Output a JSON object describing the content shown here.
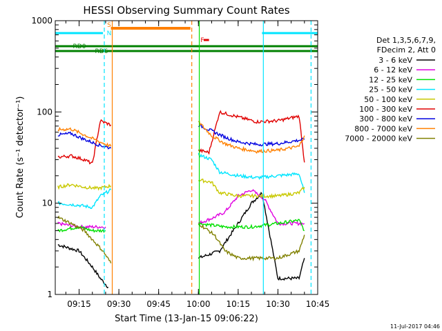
{
  "chart_data": {
    "type": "line",
    "title": "HESSI Observing Summary Count Rates",
    "xlabel": "Start Time (13-Jan-15 09:06:22)",
    "ylabel": "Count Rate (s⁻¹ detector⁻¹)",
    "y_scale": "log",
    "ylim": [
      1,
      1000
    ],
    "xlim": [
      "09:06",
      "10:45"
    ],
    "x_ticks": [
      "09:15",
      "09:30",
      "09:45",
      "10:00",
      "10:15",
      "10:30",
      "10:45"
    ],
    "y_ticks": [
      "1",
      "10",
      "100",
      "1000"
    ],
    "legend_title": [
      "Det 1,3,5,6,7,9,",
      "FDecim 2, Att 0"
    ],
    "legend_position": "right",
    "series": [
      {
        "name": "3 - 6 keV",
        "color": "#000000",
        "x": [
          "09:07",
          "09:15",
          "09:20",
          "09:23",
          "09:26",
          "10:00",
          "10:08",
          "10:15",
          "10:20",
          "10:24",
          "10:30",
          "10:38",
          "10:40"
        ],
        "values": [
          3.5,
          3.0,
          2.0,
          1.5,
          1.2,
          2.5,
          3.0,
          6.0,
          10.0,
          13.0,
          1.5,
          1.5,
          2.5
        ]
      },
      {
        "name": "6 - 12 keV",
        "color": "#e000e0",
        "x": [
          "09:07",
          "09:15",
          "09:20",
          "09:25",
          "10:00",
          "10:06",
          "10:10",
          "10:15",
          "10:20",
          "10:25",
          "10:30",
          "10:38",
          "10:40"
        ],
        "values": [
          6.0,
          5.5,
          5.5,
          5.5,
          6.0,
          7.0,
          8.0,
          12.0,
          14.0,
          11.0,
          6.0,
          6.0,
          6.0
        ]
      },
      {
        "name": "12 - 25 keV",
        "color": "#00e000",
        "x": [
          "09:07",
          "09:15",
          "09:20",
          "09:25",
          "10:00",
          "10:10",
          "10:20",
          "10:30",
          "10:38",
          "10:40"
        ],
        "values": [
          5.0,
          5.5,
          5.0,
          5.0,
          6.0,
          5.5,
          5.5,
          6.0,
          6.5,
          5.0
        ]
      },
      {
        "name": "25 - 50 keV",
        "color": "#00e5ff",
        "x": [
          "09:07",
          "09:15",
          "09:20",
          "09:23",
          "09:27",
          "10:00",
          "10:05",
          "10:08",
          "10:15",
          "10:22",
          "10:30",
          "10:38",
          "10:40"
        ],
        "values": [
          10.0,
          9.5,
          9.0,
          12.0,
          14.0,
          34.0,
          30.0,
          22.0,
          20.0,
          19.0,
          20.0,
          21.0,
          13.0
        ]
      },
      {
        "name": "50 - 100 keV",
        "color": "#c8c800",
        "x": [
          "09:07",
          "09:12",
          "09:17",
          "09:22",
          "09:27",
          "10:00",
          "10:05",
          "10:08",
          "10:15",
          "10:22",
          "10:30",
          "10:38",
          "10:40"
        ],
        "values": [
          15.0,
          16.0,
          15.0,
          14.5,
          15.5,
          18.0,
          17.0,
          13.0,
          12.0,
          12.0,
          12.0,
          13.0,
          15.0
        ]
      },
      {
        "name": "100 - 300 keV",
        "color": "#e00000",
        "x": [
          "09:07",
          "09:12",
          "09:17",
          "09:20",
          "09:23",
          "09:27",
          "10:00",
          "10:04",
          "10:08",
          "10:15",
          "10:22",
          "10:30",
          "10:38",
          "10:40"
        ],
        "values": [
          32.0,
          33.0,
          30.0,
          27.0,
          80.0,
          72.0,
          38.0,
          36.0,
          100.0,
          88.0,
          78.0,
          80.0,
          90.0,
          28.0
        ]
      },
      {
        "name": "300 - 800 keV",
        "color": "#0000e0",
        "x": [
          "09:07",
          "09:12",
          "09:17",
          "09:22",
          "09:27",
          "10:00",
          "10:05",
          "10:10",
          "10:15",
          "10:22",
          "10:30",
          "10:38",
          "10:40"
        ],
        "values": [
          56.0,
          58.0,
          50.0,
          44.0,
          40.0,
          72.0,
          62.0,
          53.0,
          47.0,
          44.0,
          45.0,
          49.0,
          50.0
        ]
      },
      {
        "name": "800 - 7000 keV",
        "color": "#ff8000",
        "x": [
          "09:07",
          "09:12",
          "09:17",
          "09:22",
          "09:27",
          "10:00",
          "10:05",
          "10:10",
          "10:15",
          "10:22",
          "10:30",
          "10:38",
          "10:40"
        ],
        "values": [
          64.0,
          65.0,
          56.0,
          48.0,
          42.0,
          78.0,
          55.0,
          45.0,
          40.0,
          37.0,
          38.0,
          42.0,
          55.0
        ]
      },
      {
        "name": "7000 - 20000 keV",
        "color": "#808000",
        "x": [
          "09:07",
          "09:12",
          "09:17",
          "09:20",
          "09:24",
          "09:27",
          "10:00",
          "10:06",
          "10:10",
          "10:15",
          "10:22",
          "10:30",
          "10:38",
          "10:40"
        ],
        "values": [
          7.0,
          6.0,
          5.0,
          4.0,
          3.0,
          2.2,
          6.0,
          4.5,
          3.0,
          2.5,
          2.5,
          2.5,
          3.0,
          4.5
        ]
      }
    ],
    "status_bars": [
      {
        "label": "S",
        "color": "#ff8000",
        "start": "09:27",
        "end": "09:57"
      },
      {
        "label": "N",
        "color": "#00e5ff",
        "start": "09:06",
        "end": "09:24"
      },
      {
        "label": "N",
        "color": "#00e5ff",
        "start": "10:24",
        "end": "10:45"
      },
      {
        "label": "RD0",
        "color": "#008000",
        "start": "09:06",
        "end": "10:45"
      },
      {
        "label": "RD6",
        "color": "#008000",
        "start": "09:06",
        "end": "10:45"
      },
      {
        "label": "F",
        "color": "#e00000",
        "start": "10:02",
        "end": "10:04"
      }
    ],
    "vertical_markers": [
      {
        "time": "09:24:30",
        "color": "#00e5ff",
        "style": "dashed"
      },
      {
        "time": "09:27:30",
        "color": "#ff8000",
        "style": "solid"
      },
      {
        "time": "09:57:30",
        "color": "#ff8000",
        "style": "dashed"
      },
      {
        "time": "10:00:20",
        "color": "#00e000",
        "style": "solid"
      },
      {
        "time": "10:24:30",
        "color": "#00e5ff",
        "style": "solid"
      },
      {
        "time": "10:42:30",
        "color": "#00e5ff",
        "style": "dashed"
      }
    ]
  },
  "footer": {
    "timestamp": "11-Jul-2017 04:46"
  }
}
